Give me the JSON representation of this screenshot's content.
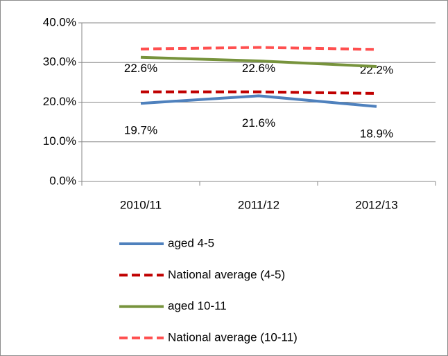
{
  "chart_data": {
    "type": "line",
    "categories": [
      "2010/11",
      "2011/12",
      "2012/13"
    ],
    "ylim": [
      0,
      40
    ],
    "yticks": [
      {
        "value": 0,
        "label": "0.0%"
      },
      {
        "value": 10,
        "label": "10.0%"
      },
      {
        "value": 20,
        "label": "20.0%"
      },
      {
        "value": 30,
        "label": "30.0%"
      },
      {
        "value": 40,
        "label": "40.0%"
      }
    ],
    "grid": true,
    "legend": "bottom",
    "series": [
      {
        "name": "aged 4-5",
        "color": "#4f81bd",
        "dashed": false,
        "values": [
          19.7,
          21.6,
          18.9
        ],
        "value_labels": [
          "19.7%",
          "21.6%",
          "18.9%"
        ]
      },
      {
        "name": "National average (4-5)",
        "color": "#c00000",
        "dashed": true,
        "values": [
          22.6,
          22.6,
          22.2
        ],
        "value_labels": [
          "22.6%",
          "22.6%",
          "22.2%"
        ]
      },
      {
        "name": "aged 10-11",
        "color": "#77933c",
        "dashed": false,
        "values": [
          31.3,
          30.4,
          29.0
        ]
      },
      {
        "name": "National average (10-11)",
        "color": "#ff4f4f",
        "dashed": true,
        "values": [
          33.4,
          33.8,
          33.3
        ]
      }
    ]
  }
}
